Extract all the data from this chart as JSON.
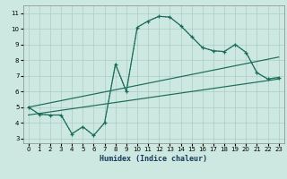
{
  "xlabel": "Humidex (Indice chaleur)",
  "xlim": [
    -0.5,
    23.5
  ],
  "ylim": [
    2.7,
    11.5
  ],
  "yticks": [
    3,
    4,
    5,
    6,
    7,
    8,
    9,
    10,
    11
  ],
  "xticks": [
    0,
    1,
    2,
    3,
    4,
    5,
    6,
    7,
    8,
    9,
    10,
    11,
    12,
    13,
    14,
    15,
    16,
    17,
    18,
    19,
    20,
    21,
    22,
    23
  ],
  "bg_color": "#cce8e0",
  "grid_color": "#aaccc4",
  "line_color": "#1a6b5a",
  "curve_x": [
    0,
    1,
    2,
    3,
    4,
    5,
    6,
    7,
    8,
    9,
    10,
    11,
    12,
    13,
    14,
    15,
    16,
    17,
    18,
    19,
    20,
    21,
    22,
    23
  ],
  "curve_y": [
    5.0,
    4.55,
    4.5,
    4.5,
    3.3,
    3.75,
    3.2,
    4.0,
    7.75,
    6.0,
    10.1,
    10.5,
    10.8,
    10.75,
    10.2,
    9.5,
    8.8,
    8.6,
    8.55,
    9.0,
    8.5,
    7.2,
    6.8,
    6.9
  ],
  "trend1_x": [
    0,
    23
  ],
  "trend1_y": [
    5.0,
    8.2
  ],
  "trend2_x": [
    0,
    23
  ],
  "trend2_y": [
    4.5,
    6.8
  ],
  "smooth_x": [
    0,
    1,
    2,
    3,
    4,
    5,
    6,
    7,
    8,
    9,
    10,
    11,
    12,
    13,
    14,
    15,
    16,
    17,
    18,
    19,
    20,
    21,
    22,
    23
  ],
  "smooth_y": [
    5.0,
    4.55,
    4.5,
    4.5,
    3.3,
    3.75,
    3.2,
    4.0,
    7.75,
    6.0,
    10.1,
    10.5,
    10.8,
    10.75,
    10.2,
    9.5,
    8.8,
    8.6,
    8.55,
    9.0,
    8.5,
    7.2,
    6.8,
    6.9
  ]
}
